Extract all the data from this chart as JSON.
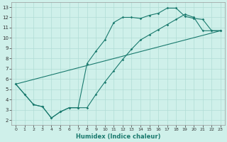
{
  "xlabel": "Humidex (Indice chaleur)",
  "background_color": "#cff0ea",
  "grid_color": "#b0ddd5",
  "line_color": "#1a7a6e",
  "xlim": [
    -0.5,
    23.5
  ],
  "ylim": [
    1.5,
    13.5
  ],
  "xticks": [
    0,
    1,
    2,
    3,
    4,
    5,
    6,
    7,
    8,
    9,
    10,
    11,
    12,
    13,
    14,
    15,
    16,
    17,
    18,
    19,
    20,
    21,
    22,
    23
  ],
  "yticks": [
    2,
    3,
    4,
    5,
    6,
    7,
    8,
    9,
    10,
    11,
    12,
    13
  ],
  "curve1_x": [
    0,
    1,
    2,
    3,
    4,
    5,
    6,
    7,
    8,
    9,
    10,
    11,
    12,
    13,
    14,
    15,
    16,
    17,
    18,
    19,
    20,
    21,
    22,
    23
  ],
  "curve1_y": [
    5.5,
    4.5,
    3.5,
    3.3,
    2.2,
    2.8,
    3.2,
    3.2,
    7.5,
    8.7,
    9.8,
    11.5,
    12.0,
    12.0,
    11.9,
    12.2,
    12.4,
    12.9,
    12.9,
    12.1,
    11.9,
    11.8,
    10.7,
    10.7
  ],
  "line_x": [
    0,
    23
  ],
  "line_y": [
    5.5,
    10.7
  ],
  "curve2_x": [
    0,
    1,
    2,
    3,
    4,
    5,
    6,
    7,
    8,
    9,
    10,
    11,
    12,
    13,
    14,
    15,
    16,
    17,
    18,
    19,
    20,
    21,
    22,
    23
  ],
  "curve2_y": [
    5.5,
    4.5,
    3.5,
    3.3,
    2.2,
    2.8,
    3.2,
    3.2,
    3.2,
    4.5,
    5.7,
    6.8,
    7.9,
    8.9,
    9.8,
    10.3,
    10.8,
    11.3,
    11.8,
    12.3,
    12.0,
    10.7,
    10.7,
    10.7
  ]
}
